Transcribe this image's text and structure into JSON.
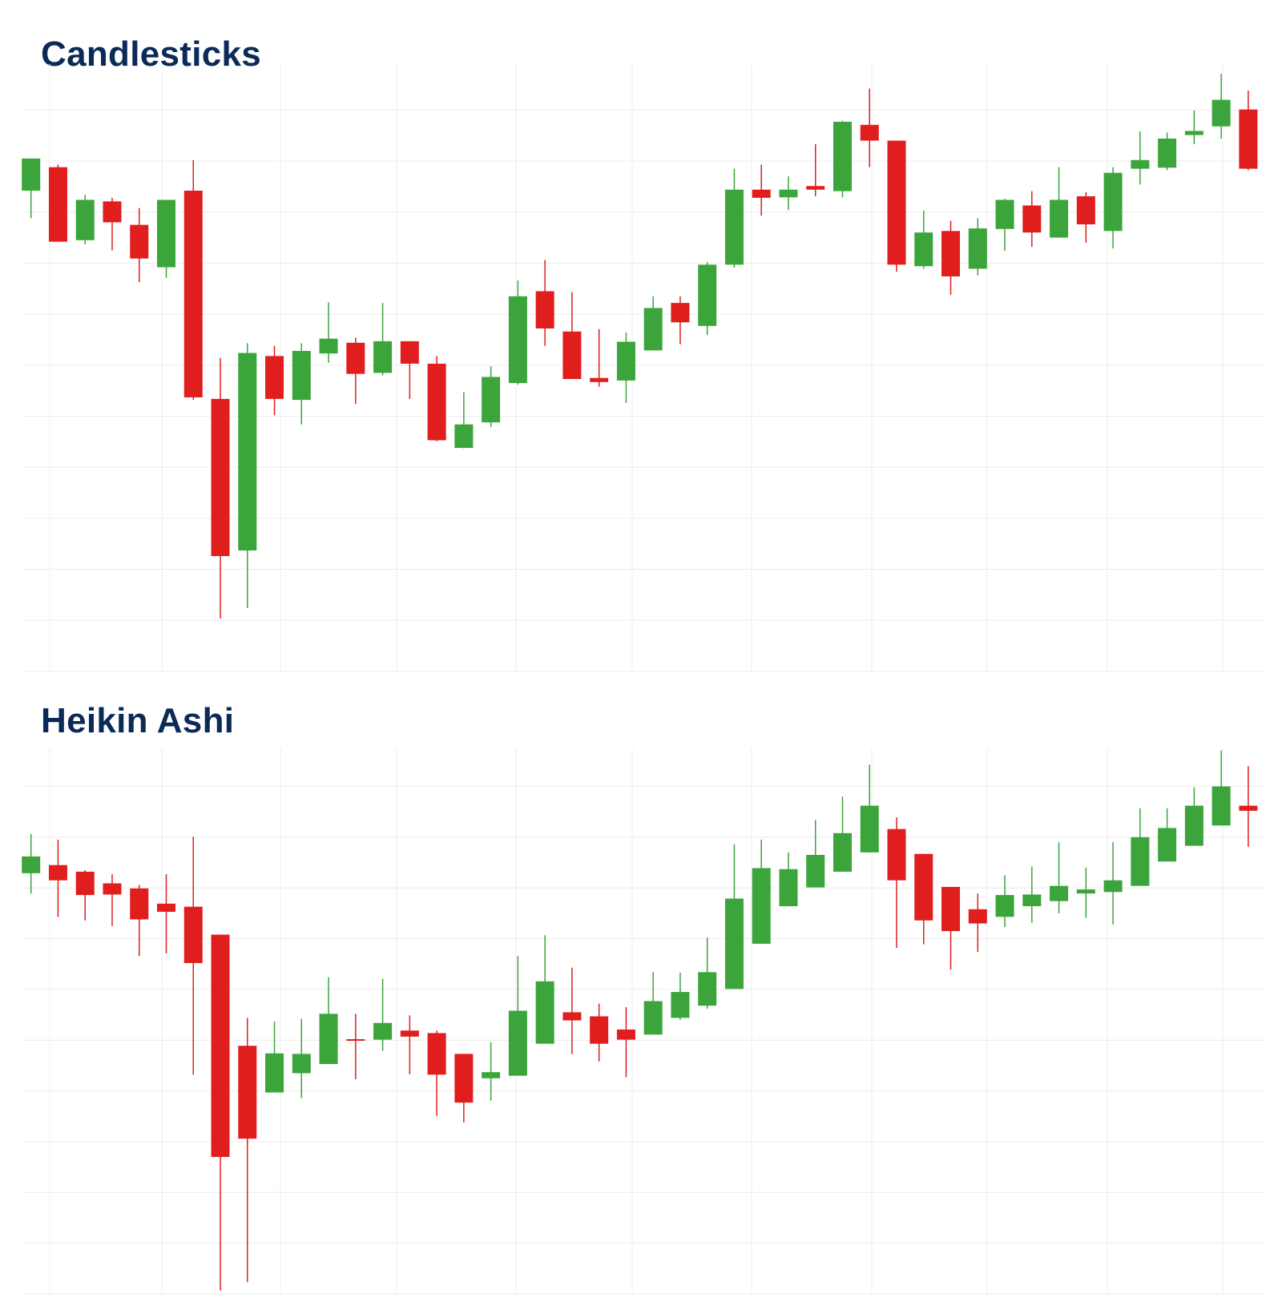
{
  "colors": {
    "up": "#3ba53b",
    "down": "#e01e1e",
    "grid": "#ececec",
    "title": "#0b2a57"
  },
  "chart_data": [
    {
      "type": "candlestick",
      "title": "Candlesticks",
      "grid": true,
      "ylim": [
        0,
        11.9
      ],
      "ohlc_format": [
        "open",
        "high",
        "low",
        "close"
      ],
      "ohlc": [
        [
          9.42,
          10.05,
          8.88,
          10.05
        ],
        [
          9.88,
          9.93,
          8.42,
          8.42
        ],
        [
          8.45,
          9.34,
          8.37,
          9.24
        ],
        [
          9.21,
          9.28,
          8.25,
          8.8
        ],
        [
          8.75,
          9.08,
          7.63,
          8.09
        ],
        [
          7.92,
          9.24,
          7.71,
          9.24
        ],
        [
          9.42,
          10.02,
          5.32,
          5.37
        ],
        [
          5.34,
          6.14,
          1.04,
          2.26
        ],
        [
          2.37,
          6.43,
          1.24,
          6.24
        ],
        [
          6.18,
          6.38,
          5.02,
          5.34
        ],
        [
          5.32,
          6.43,
          4.84,
          6.28
        ],
        [
          6.23,
          7.23,
          6.05,
          6.52
        ],
        [
          6.44,
          6.54,
          5.24,
          5.83
        ],
        [
          5.85,
          7.22,
          5.8,
          6.47
        ],
        [
          6.47,
          6.47,
          5.34,
          6.03
        ],
        [
          6.03,
          6.18,
          4.51,
          4.53
        ],
        [
          4.38,
          5.47,
          4.37,
          4.84
        ],
        [
          4.88,
          5.98,
          4.79,
          5.77
        ],
        [
          5.65,
          7.66,
          5.62,
          7.35
        ],
        [
          7.45,
          8.06,
          6.38,
          6.72
        ],
        [
          6.66,
          7.43,
          5.73,
          5.73
        ],
        [
          5.75,
          6.71,
          5.58,
          5.67
        ],
        [
          5.7,
          6.64,
          5.26,
          6.46
        ],
        [
          6.29,
          7.35,
          6.29,
          7.12
        ],
        [
          7.22,
          7.35,
          6.41,
          6.84
        ],
        [
          6.77,
          8.02,
          6.59,
          7.97
        ],
        [
          7.97,
          9.85,
          7.91,
          9.44
        ],
        [
          9.44,
          9.93,
          8.93,
          9.28
        ],
        [
          9.29,
          9.7,
          9.04,
          9.44
        ],
        [
          9.51,
          10.33,
          9.31,
          9.44
        ],
        [
          9.41,
          10.79,
          9.29,
          10.77
        ],
        [
          10.71,
          11.42,
          9.88,
          10.4
        ],
        [
          10.4,
          10.4,
          7.83,
          7.97
        ],
        [
          7.94,
          9.03,
          7.89,
          8.6
        ],
        [
          8.63,
          8.83,
          7.38,
          7.74
        ],
        [
          7.89,
          8.88,
          7.76,
          8.68
        ],
        [
          8.67,
          9.26,
          8.24,
          9.24
        ],
        [
          9.13,
          9.41,
          8.32,
          8.6
        ],
        [
          8.5,
          9.88,
          8.5,
          9.24
        ],
        [
          9.31,
          9.39,
          8.4,
          8.76
        ],
        [
          8.63,
          9.88,
          8.29,
          9.77
        ],
        [
          9.85,
          10.58,
          9.54,
          10.02
        ],
        [
          9.87,
          10.56,
          9.82,
          10.44
        ],
        [
          10.51,
          10.99,
          10.33,
          10.59
        ],
        [
          10.68,
          11.71,
          10.44,
          11.2
        ],
        [
          11.01,
          11.38,
          9.82,
          9.85
        ]
      ]
    },
    {
      "type": "candlestick",
      "title": "Heikin Ashi",
      "grid": true,
      "ylim": [
        0,
        10.75
      ],
      "ohlc_format": [
        "open",
        "high",
        "low",
        "close"
      ],
      "ohlc": [
        [
          8.29,
          9.06,
          7.89,
          8.62
        ],
        [
          8.45,
          8.95,
          7.43,
          8.15
        ],
        [
          8.32,
          8.35,
          7.36,
          7.86
        ],
        [
          8.09,
          8.27,
          7.25,
          7.87
        ],
        [
          7.99,
          8.06,
          6.66,
          7.38
        ],
        [
          7.69,
          8.27,
          6.71,
          7.53
        ],
        [
          7.63,
          9.01,
          4.32,
          6.52
        ],
        [
          7.08,
          7.08,
          0.07,
          2.7
        ],
        [
          4.89,
          5.44,
          0.23,
          3.06
        ],
        [
          3.97,
          5.37,
          3.97,
          4.74
        ],
        [
          4.35,
          5.42,
          3.86,
          4.73
        ],
        [
          4.53,
          6.24,
          4.53,
          5.52
        ],
        [
          5.02,
          5.52,
          4.23,
          4.99
        ],
        [
          5.01,
          6.21,
          4.79,
          5.34
        ],
        [
          5.19,
          5.49,
          4.33,
          5.07
        ],
        [
          5.14,
          5.19,
          3.51,
          4.32
        ],
        [
          4.73,
          4.73,
          3.38,
          3.77
        ],
        [
          4.25,
          4.96,
          3.81,
          4.37
        ],
        [
          4.3,
          6.66,
          4.3,
          5.58
        ],
        [
          4.93,
          7.07,
          4.93,
          6.16
        ],
        [
          5.55,
          6.43,
          4.73,
          5.39
        ],
        [
          5.47,
          5.72,
          4.58,
          4.93
        ],
        [
          5.21,
          5.65,
          4.27,
          5.01
        ],
        [
          5.11,
          6.34,
          5.11,
          5.77
        ],
        [
          5.44,
          6.33,
          5.4,
          5.95
        ],
        [
          5.68,
          7.02,
          5.62,
          6.34
        ],
        [
          6.01,
          8.86,
          6.01,
          7.79
        ],
        [
          6.9,
          8.95,
          6.9,
          8.39
        ],
        [
          7.64,
          8.7,
          7.64,
          8.37
        ],
        [
          8.01,
          9.34,
          8.01,
          8.65
        ],
        [
          8.32,
          9.8,
          8.32,
          9.08
        ],
        [
          8.7,
          10.43,
          8.7,
          9.62
        ],
        [
          9.16,
          9.39,
          6.82,
          8.15
        ],
        [
          8.67,
          8.67,
          6.89,
          7.36
        ],
        [
          8.02,
          8.02,
          6.39,
          7.15
        ],
        [
          7.58,
          7.89,
          6.74,
          7.3
        ],
        [
          7.43,
          8.25,
          7.23,
          7.86
        ],
        [
          7.64,
          8.42,
          7.31,
          7.87
        ],
        [
          7.74,
          8.9,
          7.5,
          8.04
        ],
        [
          7.89,
          8.4,
          7.41,
          7.97
        ],
        [
          7.92,
          8.9,
          7.28,
          8.15
        ],
        [
          8.04,
          9.57,
          8.04,
          9.0
        ],
        [
          8.52,
          9.57,
          8.52,
          9.18
        ],
        [
          8.83,
          9.98,
          8.83,
          9.62
        ],
        [
          9.23,
          10.71,
          9.23,
          10.0
        ],
        [
          9.62,
          10.4,
          8.81,
          9.52
        ]
      ]
    }
  ]
}
